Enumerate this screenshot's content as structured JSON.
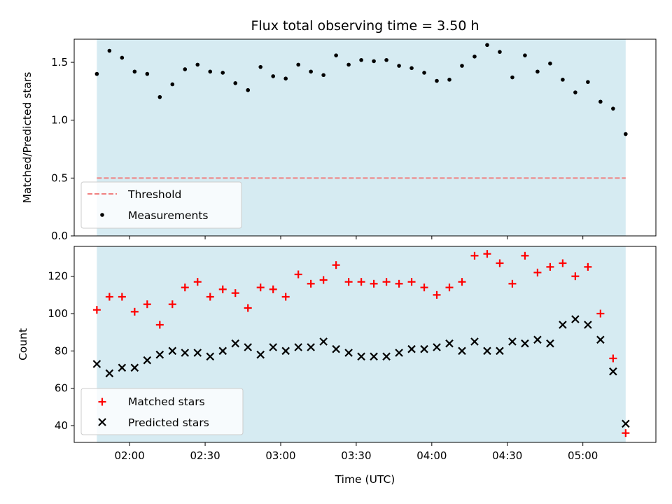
{
  "chart_data": [
    {
      "type": "scatter",
      "title": "Flux total observing time = 3.50 h",
      "ylabel": "Matched/Predicted stars",
      "ylim": [
        0,
        1.7
      ],
      "yticks": [
        0.0,
        0.5,
        1.0,
        1.5
      ],
      "ytick_labels": [
        "0.0",
        "0.5",
        "1.0",
        "1.5"
      ],
      "shaded_color": "#add8e6",
      "legend_position": "lower-left",
      "threshold": {
        "name": "Threshold",
        "value": 0.5,
        "color": "#f08080",
        "style": "dashed"
      },
      "series": [
        {
          "name": "Measurements",
          "marker": "dot",
          "color": "#000000",
          "x": [
            "01:47",
            "01:52",
            "01:57",
            "02:02",
            "02:07",
            "02:12",
            "02:17",
            "02:22",
            "02:27",
            "02:32",
            "02:37",
            "02:42",
            "02:47",
            "02:52",
            "02:57",
            "03:02",
            "03:07",
            "03:12",
            "03:17",
            "03:22",
            "03:27",
            "03:32",
            "03:37",
            "03:42",
            "03:47",
            "03:52",
            "03:57",
            "04:02",
            "04:07",
            "04:12",
            "04:17",
            "04:22",
            "04:27",
            "04:32",
            "04:37",
            "04:42",
            "04:47",
            "04:52",
            "04:57",
            "05:02",
            "05:07",
            "05:12",
            "05:17"
          ],
          "values": [
            1.4,
            1.6,
            1.54,
            1.42,
            1.4,
            1.2,
            1.31,
            1.44,
            1.48,
            1.42,
            1.41,
            1.32,
            1.26,
            1.46,
            1.38,
            1.36,
            1.48,
            1.42,
            1.39,
            1.56,
            1.48,
            1.52,
            1.51,
            1.52,
            1.47,
            1.45,
            1.41,
            1.34,
            1.35,
            1.47,
            1.55,
            1.65,
            1.59,
            1.37,
            1.56,
            1.42,
            1.49,
            1.35,
            1.24,
            1.33,
            1.16,
            1.1,
            0.88
          ]
        }
      ]
    },
    {
      "type": "scatter",
      "xlabel": "Time (UTC)",
      "ylabel": "Count",
      "ylim": [
        31,
        136
      ],
      "yticks": [
        40,
        60,
        80,
        100,
        120
      ],
      "ytick_labels": [
        "40",
        "60",
        "80",
        "100",
        "120"
      ],
      "xticks": [
        "02:00",
        "02:30",
        "03:00",
        "03:30",
        "04:00",
        "04:30",
        "05:00"
      ],
      "shaded_color": "#add8e6",
      "legend_position": "lower-left",
      "series": [
        {
          "name": "Matched stars",
          "marker": "plus",
          "color": "#ff0000",
          "x": [
            "01:47",
            "01:52",
            "01:57",
            "02:02",
            "02:07",
            "02:12",
            "02:17",
            "02:22",
            "02:27",
            "02:32",
            "02:37",
            "02:42",
            "02:47",
            "02:52",
            "02:57",
            "03:02",
            "03:07",
            "03:12",
            "03:17",
            "03:22",
            "03:27",
            "03:32",
            "03:37",
            "03:42",
            "03:47",
            "03:52",
            "03:57",
            "04:02",
            "04:07",
            "04:12",
            "04:17",
            "04:22",
            "04:27",
            "04:32",
            "04:37",
            "04:42",
            "04:47",
            "04:52",
            "04:57",
            "05:02",
            "05:07",
            "05:12",
            "05:17"
          ],
          "values": [
            102,
            109,
            109,
            101,
            105,
            94,
            105,
            114,
            117,
            109,
            113,
            111,
            103,
            114,
            113,
            109,
            121,
            116,
            118,
            126,
            117,
            117,
            116,
            117,
            116,
            117,
            114,
            110,
            114,
            117,
            131,
            132,
            127,
            116,
            131,
            122,
            125,
            127,
            120,
            125,
            100,
            76,
            36
          ]
        },
        {
          "name": "Predicted stars",
          "marker": "x",
          "color": "#000000",
          "x": [
            "01:47",
            "01:52",
            "01:57",
            "02:02",
            "02:07",
            "02:12",
            "02:17",
            "02:22",
            "02:27",
            "02:32",
            "02:37",
            "02:42",
            "02:47",
            "02:52",
            "02:57",
            "03:02",
            "03:07",
            "03:12",
            "03:17",
            "03:22",
            "03:27",
            "03:32",
            "03:37",
            "03:42",
            "03:47",
            "03:52",
            "03:57",
            "04:02",
            "04:07",
            "04:12",
            "04:17",
            "04:22",
            "04:27",
            "04:32",
            "04:37",
            "04:42",
            "04:47",
            "04:52",
            "04:57",
            "05:02",
            "05:07",
            "05:12",
            "05:17"
          ],
          "values": [
            73,
            68,
            71,
            71,
            75,
            78,
            80,
            79,
            79,
            77,
            80,
            84,
            82,
            78,
            82,
            80,
            82,
            82,
            85,
            81,
            79,
            77,
            77,
            77,
            79,
            81,
            81,
            82,
            84,
            80,
            85,
            80,
            80,
            85,
            84,
            86,
            84,
            94,
            97,
            94,
            86,
            69,
            41
          ]
        }
      ]
    }
  ]
}
